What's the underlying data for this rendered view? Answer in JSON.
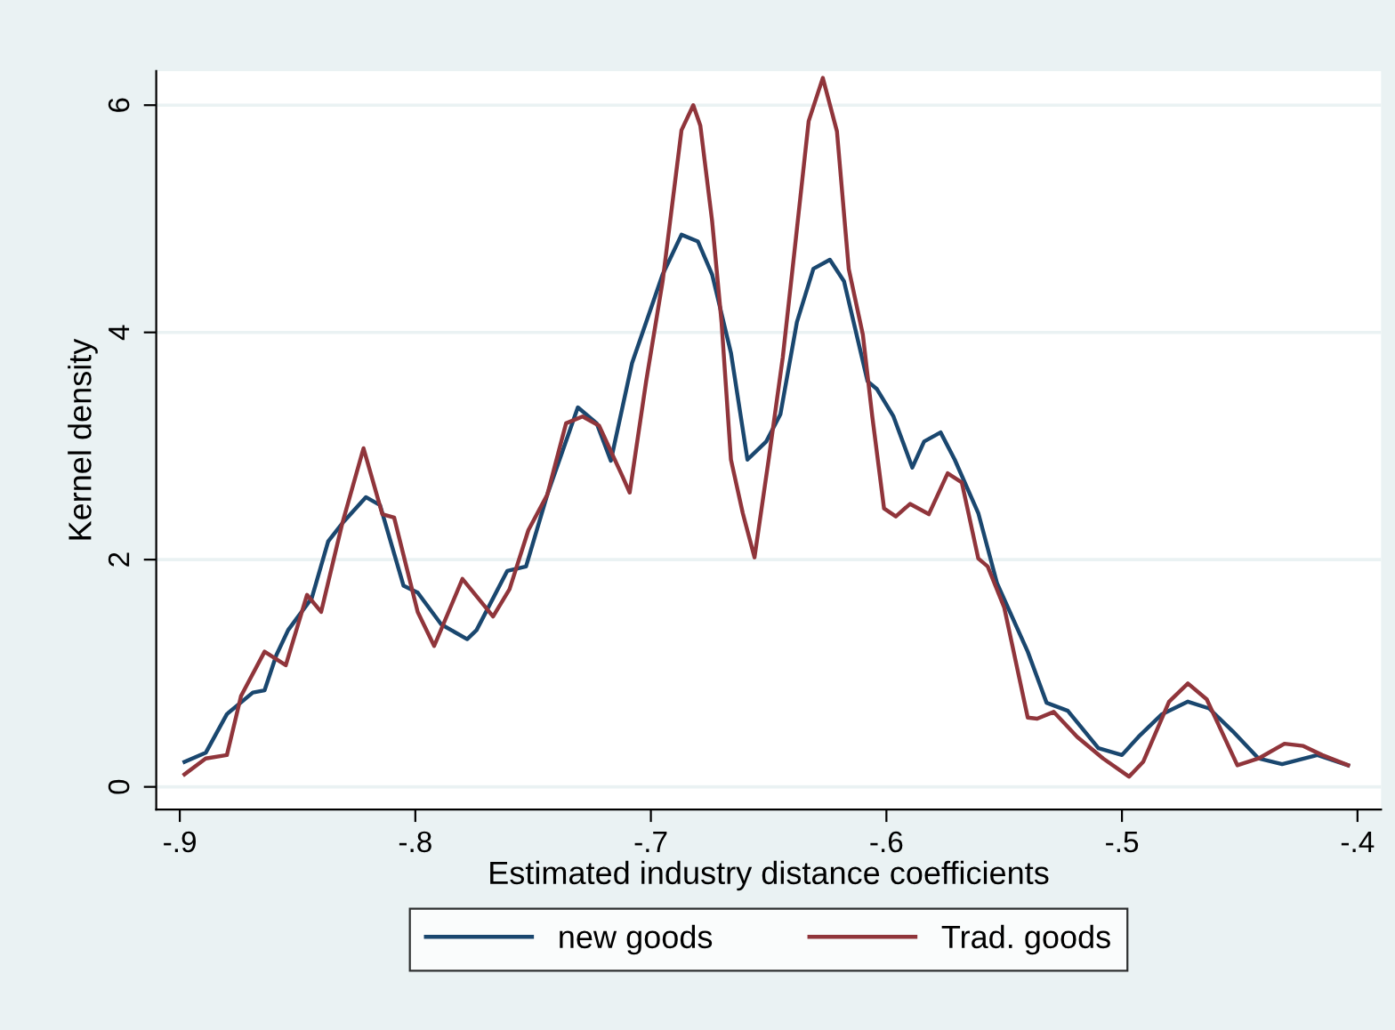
{
  "chart_data": {
    "type": "line",
    "xlabel": "Estimated industry distance coefficients",
    "ylabel": "Kernel density",
    "xlim": [
      -0.91,
      -0.39
    ],
    "ylim": [
      -0.2,
      6.3
    ],
    "xticks": [
      {
        "value": -0.9,
        "label": "-.9"
      },
      {
        "value": -0.8,
        "label": "-.8"
      },
      {
        "value": -0.7,
        "label": "-.7"
      },
      {
        "value": -0.6,
        "label": "-.6"
      },
      {
        "value": -0.5,
        "label": "-.5"
      },
      {
        "value": -0.4,
        "label": "-.4"
      }
    ],
    "yticks": [
      0,
      2,
      4,
      6
    ],
    "grid": "y",
    "legend": "bottom",
    "marker": "none",
    "line_style": "solid",
    "series": [
      {
        "name": "new goods",
        "color": "#1a476f",
        "x": [
          -0.898,
          -0.889,
          -0.88,
          -0.869,
          -0.864,
          -0.859,
          -0.854,
          -0.844,
          -0.837,
          -0.831,
          -0.821,
          -0.815,
          -0.805,
          -0.799,
          -0.789,
          -0.778,
          -0.774,
          -0.761,
          -0.753,
          -0.744,
          -0.731,
          -0.723,
          -0.717,
          -0.708,
          -0.702,
          -0.695,
          -0.687,
          -0.68,
          -0.674,
          -0.666,
          -0.659,
          -0.651,
          -0.645,
          -0.638,
          -0.631,
          -0.624,
          -0.618,
          -0.608,
          -0.604,
          -0.597,
          -0.589,
          -0.584,
          -0.577,
          -0.571,
          -0.561,
          -0.553,
          -0.54,
          -0.532,
          -0.523,
          -0.51,
          -0.5,
          -0.493,
          -0.483,
          -0.472,
          -0.463,
          -0.453,
          -0.442,
          -0.432,
          -0.417,
          -0.404
        ],
        "values": [
          0.22,
          0.3,
          0.64,
          0.83,
          0.85,
          1.16,
          1.38,
          1.66,
          2.16,
          2.32,
          2.55,
          2.48,
          1.77,
          1.71,
          1.43,
          1.3,
          1.38,
          1.9,
          1.94,
          2.57,
          3.34,
          3.2,
          2.87,
          3.73,
          4.09,
          4.51,
          4.86,
          4.8,
          4.51,
          3.82,
          2.88,
          3.04,
          3.28,
          4.09,
          4.56,
          4.64,
          4.45,
          3.57,
          3.5,
          3.26,
          2.81,
          3.04,
          3.12,
          2.88,
          2.41,
          1.79,
          1.19,
          0.74,
          0.67,
          0.34,
          0.28,
          0.44,
          0.64,
          0.75,
          0.69,
          0.49,
          0.25,
          0.2,
          0.28,
          0.19
        ]
      },
      {
        "name": "Trad. goods",
        "color": "#90353b",
        "x": [
          -0.898,
          -0.889,
          -0.88,
          -0.874,
          -0.864,
          -0.855,
          -0.846,
          -0.84,
          -0.831,
          -0.822,
          -0.814,
          -0.809,
          -0.799,
          -0.792,
          -0.78,
          -0.767,
          -0.76,
          -0.752,
          -0.744,
          -0.736,
          -0.729,
          -0.722,
          -0.712,
          -0.709,
          -0.702,
          -0.695,
          -0.687,
          -0.682,
          -0.679,
          -0.674,
          -0.67,
          -0.666,
          -0.661,
          -0.656,
          -0.65,
          -0.644,
          -0.639,
          -0.633,
          -0.627,
          -0.621,
          -0.616,
          -0.61,
          -0.606,
          -0.601,
          -0.596,
          -0.59,
          -0.582,
          -0.574,
          -0.568,
          -0.561,
          -0.557,
          -0.55,
          -0.54,
          -0.536,
          -0.529,
          -0.519,
          -0.508,
          -0.497,
          -0.491,
          -0.48,
          -0.472,
          -0.464,
          -0.451,
          -0.442,
          -0.431,
          -0.423,
          -0.415,
          -0.404
        ],
        "values": [
          0.11,
          0.25,
          0.28,
          0.8,
          1.19,
          1.07,
          1.69,
          1.54,
          2.32,
          2.98,
          2.4,
          2.37,
          1.54,
          1.24,
          1.83,
          1.5,
          1.74,
          2.26,
          2.57,
          3.2,
          3.26,
          3.18,
          2.73,
          2.59,
          3.57,
          4.45,
          5.78,
          6.0,
          5.82,
          4.98,
          4.09,
          2.88,
          2.41,
          2.02,
          2.88,
          3.78,
          4.72,
          5.86,
          6.24,
          5.77,
          4.56,
          3.98,
          3.26,
          2.45,
          2.38,
          2.49,
          2.4,
          2.76,
          2.68,
          2.01,
          1.94,
          1.58,
          0.61,
          0.6,
          0.66,
          0.44,
          0.25,
          0.09,
          0.22,
          0.75,
          0.91,
          0.77,
          0.19,
          0.25,
          0.38,
          0.36,
          0.28,
          0.19
        ]
      }
    ]
  }
}
